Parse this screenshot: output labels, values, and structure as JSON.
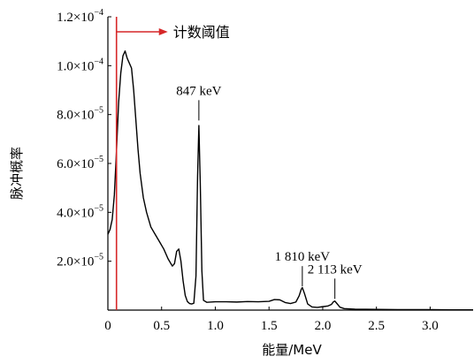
{
  "chart_data": {
    "type": "line",
    "xlabel": "能量/MeV",
    "ylabel": "脉冲概率",
    "xlim": [
      0,
      3.4
    ],
    "ylim": [
      0,
      0.00012
    ],
    "x_ticks": [
      0,
      0.5,
      1.0,
      1.5,
      2.0,
      2.5,
      3.0
    ],
    "x_tick_labels": [
      "0",
      "0.5",
      "1.0",
      "1.5",
      "2.0",
      "2.5",
      "3.0"
    ],
    "y_ticks": [
      2e-05,
      4e-05,
      6e-05,
      8e-05,
      0.0001,
      0.00012
    ],
    "y_tick_labels": [
      {
        "mant": "2.0×10",
        "exp": "−5"
      },
      {
        "mant": "4.0×10",
        "exp": "−5"
      },
      {
        "mant": "6.0×10",
        "exp": "−5"
      },
      {
        "mant": "8.0×10",
        "exp": "−5"
      },
      {
        "mant": "1.0×10",
        "exp": "−4"
      },
      {
        "mant": "1.2×10",
        "exp": "−4"
      }
    ],
    "grid": false,
    "threshold": {
      "x": 0.08,
      "label": "计数阈值",
      "color": "#d62728"
    },
    "annotations": [
      {
        "text": "847 keV",
        "x": 0.847,
        "y": 7.65e-05
      },
      {
        "text": "1 810 keV",
        "x": 1.81,
        "y": 8.6e-06
      },
      {
        "text": "2 113 keV",
        "x": 2.113,
        "y": 3.5e-06
      }
    ],
    "series": [
      {
        "color": "#000000",
        "x": [
          0.0,
          0.02,
          0.04,
          0.06,
          0.08,
          0.1,
          0.12,
          0.14,
          0.16,
          0.18,
          0.2,
          0.22,
          0.24,
          0.26,
          0.28,
          0.3,
          0.33,
          0.36,
          0.4,
          0.44,
          0.48,
          0.52,
          0.56,
          0.6,
          0.62,
          0.64,
          0.66,
          0.68,
          0.7,
          0.72,
          0.74,
          0.76,
          0.78,
          0.8,
          0.82,
          0.835,
          0.847,
          0.86,
          0.875,
          0.89,
          0.92,
          1.0,
          1.1,
          1.2,
          1.3,
          1.4,
          1.5,
          1.55,
          1.6,
          1.65,
          1.7,
          1.75,
          1.78,
          1.8,
          1.81,
          1.83,
          1.86,
          1.9,
          1.95,
          2.0,
          2.05,
          2.08,
          2.1,
          2.113,
          2.13,
          2.16,
          2.2,
          2.3,
          2.5,
          2.7,
          3.0,
          3.2,
          3.4
        ],
        "y": [
          3.1e-05,
          3.3e-05,
          3.7e-05,
          4.7e-05,
          6.5e-05,
          8.5e-05,
          9.7e-05,
          0.000104,
          0.000106,
          0.000103,
          0.000101,
          9.9e-05,
          9e-05,
          7.8e-05,
          6.6e-05,
          5.6e-05,
          4.6e-05,
          4e-05,
          3.4e-05,
          3.1e-05,
          2.8e-05,
          2.5e-05,
          2.1e-05,
          1.8e-05,
          1.9e-05,
          2.4e-05,
          2.5e-05,
          2e-05,
          1.2e-05,
          6e-06,
          3.5e-06,
          2.7e-06,
          2.5e-06,
          2.8e-06,
          1.4e-05,
          5.5e-05,
          7.55e-05,
          5.2e-05,
          1.6e-05,
          4e-06,
          3.2e-06,
          3.4e-06,
          3.4e-06,
          3.3e-06,
          3.5e-06,
          3.4e-06,
          3.6e-06,
          4.3e-06,
          4.2e-06,
          3.1e-06,
          2.7e-06,
          3.3e-06,
          5.8e-06,
          8.5e-06,
          9.2e-06,
          6.8e-06,
          2.5e-06,
          1.3e-06,
          1.1e-06,
          1.4e-06,
          1.7e-06,
          2.3e-06,
          3.4e-06,
          3.7e-06,
          2.8e-06,
          1.2e-06,
          6e-07,
          4e-07,
          3e-07,
          2e-07,
          2e-07,
          1e-07,
          1e-07
        ]
      }
    ]
  }
}
